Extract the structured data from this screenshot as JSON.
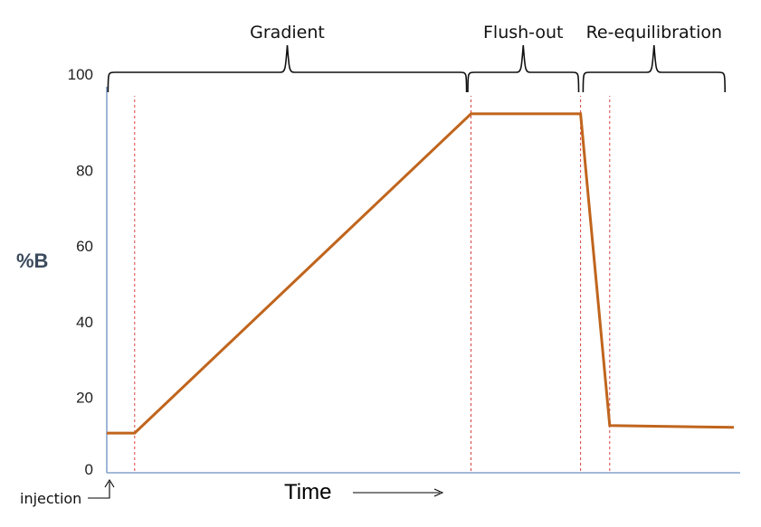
{
  "chart_data": {
    "type": "line",
    "ylabel": "%B",
    "xlabel": "Time",
    "ylim": [
      0,
      100
    ],
    "y_ticks": [
      "0",
      "20",
      "40",
      "60",
      "80",
      "100"
    ],
    "x_axis_tick_labels": "none",
    "grid": false,
    "series": [
      {
        "color": "#c0651d",
        "points": [
          {
            "x": 0.0,
            "y": 10.5
          },
          {
            "x": 4.4,
            "y": 10.5
          },
          {
            "x": 57.5,
            "y": 95
          },
          {
            "x": 74.8,
            "y": 95
          },
          {
            "x": 79.4,
            "y": 12.5
          },
          {
            "x": 99.0,
            "y": 12.0
          }
        ]
      }
    ],
    "phase_markers": {
      "color": "#d94040",
      "style": "dashed",
      "x": [
        4.4,
        57.5,
        74.8,
        79.4
      ]
    },
    "phases": [
      {
        "label": "Gradient",
        "x_start": 0.2,
        "x_end": 56.8
      },
      {
        "label": "Flush-out",
        "x_start": 57.0,
        "x_end": 74.5
      },
      {
        "label": "Re-equilibration",
        "x_start": 75.2,
        "x_end": 97.6
      }
    ],
    "annotations": {
      "injection": "injection",
      "time_arrow": "→"
    }
  },
  "colors": {
    "axis": "#6a8fc0",
    "line": "#c0651d",
    "marker": "#d94040",
    "brace": "#111111"
  }
}
